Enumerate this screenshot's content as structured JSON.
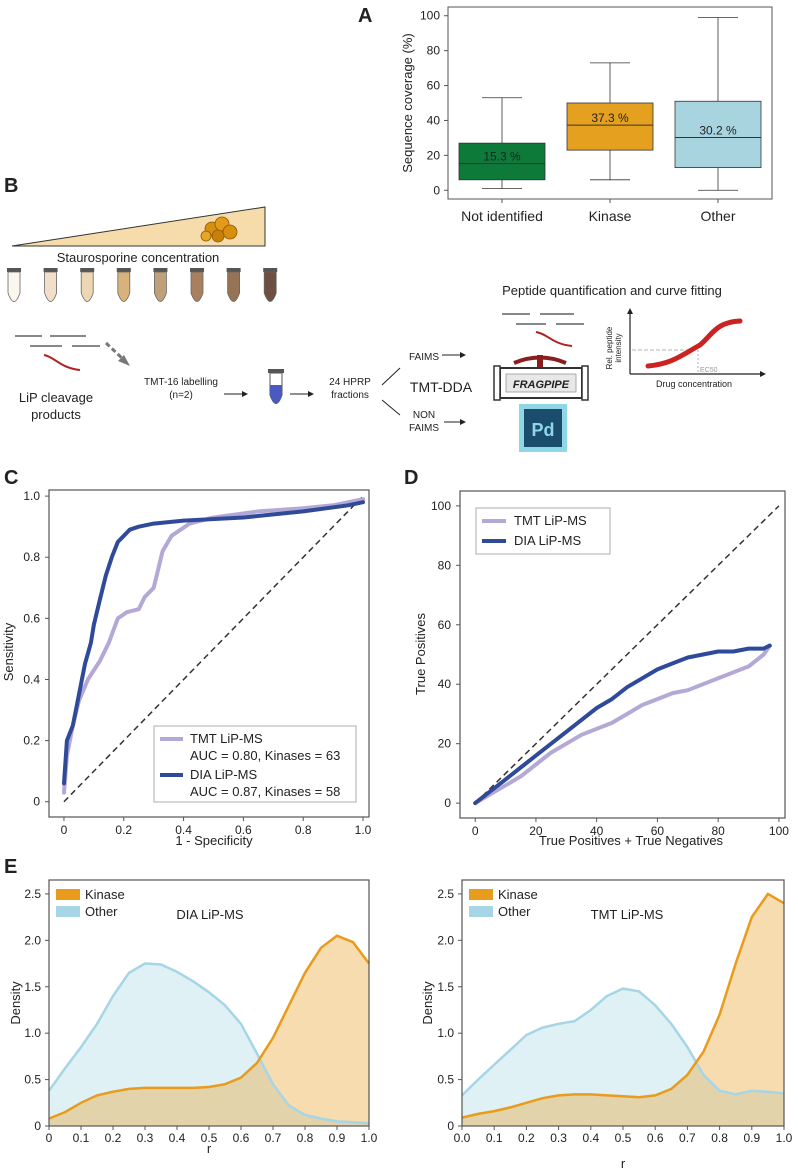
{
  "panel_labels": {
    "a": "A",
    "b": "B",
    "c": "C",
    "d": "D",
    "e": "E"
  },
  "chart_data": [
    {
      "panel": "A",
      "type": "box",
      "ylabel": "Sequence coverage (%)",
      "ylim": [
        -5,
        105
      ],
      "yticks": [
        0,
        20,
        40,
        60,
        80,
        100
      ],
      "categories": [
        "Not identified",
        "Kinase",
        "Other"
      ],
      "boxes": [
        {
          "name": "Not identified",
          "min": 1,
          "q1": 6,
          "median": 15.3,
          "q3": 27,
          "max": 53,
          "color": "#0e7a3a",
          "label": "15.3 %"
        },
        {
          "name": "Kinase",
          "min": 6,
          "q1": 23,
          "median": 37.3,
          "q3": 50,
          "max": 73,
          "color": "#e5a020",
          "label": "37.3 %"
        },
        {
          "name": "Other",
          "min": 0,
          "q1": 13,
          "median": 30.2,
          "q3": 51,
          "max": 99,
          "color": "#a8d4e0",
          "label": "30.2 %"
        }
      ]
    },
    {
      "panel": "C",
      "type": "line",
      "xlabel": "1 - Specificity",
      "ylabel": "Sensitivity",
      "xlim": [
        -0.05,
        1.02
      ],
      "ylim": [
        -0.05,
        1.02
      ],
      "xticks": [
        "0",
        "0.2",
        "0.4",
        "0.6",
        "0.8",
        "1.0"
      ],
      "yticks": [
        "0",
        "0.2",
        "0.4",
        "0.6",
        "0.8",
        "1.0"
      ],
      "series": [
        {
          "name": "TMT LiP-MS",
          "auc_label": "AUC = 0.80, Kinases = 63",
          "color": "#b4a8d6",
          "x": [
            0,
            0.01,
            0.03,
            0.05,
            0.08,
            0.12,
            0.15,
            0.18,
            0.21,
            0.25,
            0.27,
            0.3,
            0.33,
            0.36,
            0.42,
            0.5,
            0.65,
            0.8,
            0.9,
            1.0
          ],
          "y": [
            0.03,
            0.15,
            0.25,
            0.33,
            0.4,
            0.46,
            0.52,
            0.6,
            0.62,
            0.63,
            0.67,
            0.7,
            0.82,
            0.87,
            0.91,
            0.93,
            0.95,
            0.96,
            0.97,
            0.99
          ]
        },
        {
          "name": "DIA LiP-MS",
          "auc_label": "AUC = 0.87, Kinases = 58",
          "color": "#2f4a99",
          "x": [
            0,
            0.01,
            0.03,
            0.05,
            0.07,
            0.09,
            0.1,
            0.12,
            0.14,
            0.16,
            0.18,
            0.2,
            0.22,
            0.25,
            0.3,
            0.4,
            0.6,
            0.8,
            0.95,
            1.0
          ],
          "y": [
            0.06,
            0.2,
            0.25,
            0.35,
            0.45,
            0.52,
            0.58,
            0.66,
            0.74,
            0.8,
            0.85,
            0.87,
            0.89,
            0.9,
            0.91,
            0.92,
            0.93,
            0.95,
            0.97,
            0.98
          ]
        }
      ]
    },
    {
      "panel": "D",
      "type": "line",
      "xlabel": "True Positives + True Negatives",
      "ylabel": "True Positives",
      "xlim": [
        -5,
        102
      ],
      "ylim": [
        -5,
        105
      ],
      "xticks": [
        "0",
        "20",
        "40",
        "60",
        "80",
        "100"
      ],
      "yticks": [
        "0",
        "20",
        "40",
        "60",
        "80",
        "100"
      ],
      "series": [
        {
          "name": "TMT LiP-MS",
          "color": "#b4a8d6",
          "x": [
            0,
            5,
            10,
            15,
            20,
            25,
            30,
            35,
            40,
            45,
            50,
            55,
            60,
            65,
            70,
            75,
            80,
            85,
            90,
            95,
            97
          ],
          "y": [
            0,
            3,
            6,
            9,
            13,
            17,
            20,
            23,
            25,
            27,
            30,
            33,
            35,
            37,
            38,
            40,
            42,
            44,
            46,
            50,
            53
          ]
        },
        {
          "name": "DIA LiP-MS",
          "color": "#2f4a99",
          "x": [
            0,
            5,
            10,
            15,
            20,
            25,
            30,
            35,
            40,
            45,
            50,
            55,
            60,
            65,
            70,
            75,
            80,
            85,
            90,
            95,
            97
          ],
          "y": [
            0,
            4,
            8,
            12,
            16,
            20,
            24,
            28,
            32,
            35,
            39,
            42,
            45,
            47,
            49,
            50,
            51,
            51,
            52,
            52,
            53
          ]
        }
      ]
    },
    {
      "panel": "E-left",
      "type": "area",
      "title": "DIA LiP-MS",
      "xlabel": "r",
      "ylabel": "Density",
      "xlim": [
        0,
        1
      ],
      "ylim": [
        0,
        2.65
      ],
      "xticks": [
        "0",
        "0.1",
        "0.2",
        "0.3",
        "0.4",
        "0.5",
        "0.6",
        "0.7",
        "0.8",
        "0.9",
        "1.0"
      ],
      "yticks": [
        "0",
        "0.5",
        "1.0",
        "1.5",
        "2.0",
        "2.5"
      ],
      "series": [
        {
          "name": "Kinase",
          "color": "#e89b1c",
          "x": [
            0,
            0.05,
            0.1,
            0.15,
            0.2,
            0.25,
            0.3,
            0.35,
            0.4,
            0.45,
            0.5,
            0.55,
            0.6,
            0.65,
            0.7,
            0.75,
            0.8,
            0.85,
            0.9,
            0.95,
            1.0
          ],
          "y": [
            0.08,
            0.15,
            0.25,
            0.33,
            0.37,
            0.4,
            0.41,
            0.41,
            0.41,
            0.41,
            0.42,
            0.45,
            0.52,
            0.68,
            0.95,
            1.3,
            1.65,
            1.92,
            2.05,
            1.98,
            1.75
          ]
        },
        {
          "name": "Other",
          "color": "#a6d6e6",
          "x": [
            0,
            0.05,
            0.1,
            0.15,
            0.2,
            0.25,
            0.3,
            0.35,
            0.4,
            0.45,
            0.5,
            0.55,
            0.6,
            0.65,
            0.7,
            0.75,
            0.8,
            0.85,
            0.9,
            0.95,
            1.0
          ],
          "y": [
            0.38,
            0.62,
            0.85,
            1.1,
            1.4,
            1.65,
            1.75,
            1.74,
            1.66,
            1.56,
            1.44,
            1.3,
            1.1,
            0.78,
            0.45,
            0.22,
            0.12,
            0.08,
            0.05,
            0.04,
            0.03
          ]
        }
      ]
    },
    {
      "panel": "E-right",
      "type": "area",
      "title": "TMT LiP-MS",
      "xlabel": "r",
      "ylabel": "Density",
      "xlim": [
        0,
        1
      ],
      "ylim": [
        0,
        2.65
      ],
      "xticks": [
        "0.0",
        "0.1",
        "0.2",
        "0.3",
        "0.4",
        "0.5",
        "0.6",
        "0.7",
        "0.8",
        "0.9",
        "1.0"
      ],
      "yticks": [
        "0",
        "0.5",
        "1.0",
        "1.5",
        "2.0",
        "2.5"
      ],
      "series": [
        {
          "name": "Kinase",
          "color": "#e89b1c",
          "x": [
            0,
            0.05,
            0.1,
            0.15,
            0.2,
            0.25,
            0.3,
            0.35,
            0.4,
            0.45,
            0.5,
            0.55,
            0.6,
            0.65,
            0.7,
            0.75,
            0.8,
            0.85,
            0.9,
            0.95,
            1.0
          ],
          "y": [
            0.09,
            0.13,
            0.16,
            0.2,
            0.25,
            0.3,
            0.33,
            0.34,
            0.34,
            0.33,
            0.32,
            0.31,
            0.33,
            0.4,
            0.55,
            0.8,
            1.2,
            1.75,
            2.25,
            2.5,
            2.4
          ]
        },
        {
          "name": "Other",
          "color": "#a6d6e6",
          "x": [
            0,
            0.05,
            0.1,
            0.15,
            0.2,
            0.25,
            0.3,
            0.35,
            0.4,
            0.45,
            0.5,
            0.55,
            0.6,
            0.65,
            0.7,
            0.75,
            0.8,
            0.85,
            0.9,
            0.95,
            1.0
          ],
          "y": [
            0.33,
            0.5,
            0.66,
            0.82,
            0.98,
            1.06,
            1.1,
            1.13,
            1.25,
            1.4,
            1.48,
            1.45,
            1.3,
            1.1,
            0.85,
            0.55,
            0.38,
            0.34,
            0.38,
            0.37,
            0.35
          ]
        }
      ]
    }
  ],
  "workflow": {
    "gradient_label": "Staurosporine concentration",
    "cleavage_label_1": "LiP cleavage",
    "cleavage_label_2": "products",
    "tmt_label_1": "TMT-16 labelling",
    "tmt_label_2": "(n=2)",
    "hprp_label_1": "24 HPRP",
    "hprp_label_2": "fractions",
    "faims": "FAIMS",
    "non_1": "NON",
    "non_2": "FAIMS",
    "tmt_dda": "TMT-DDA",
    "fragpipe": "FRAGPIPE",
    "pd": "Pd",
    "quant_title": "Peptide quantification and curve fitting",
    "rel_1": "Rel. peptide",
    "rel_2": "intensity",
    "ec50": "EC50",
    "drug": "Drug concentration",
    "tube_colors": [
      "#fbf6ee",
      "#f2dfc9",
      "#ecd6b4",
      "#d7b27a",
      "#bfa07a",
      "#a8805e",
      "#957354",
      "#6e5040"
    ]
  }
}
